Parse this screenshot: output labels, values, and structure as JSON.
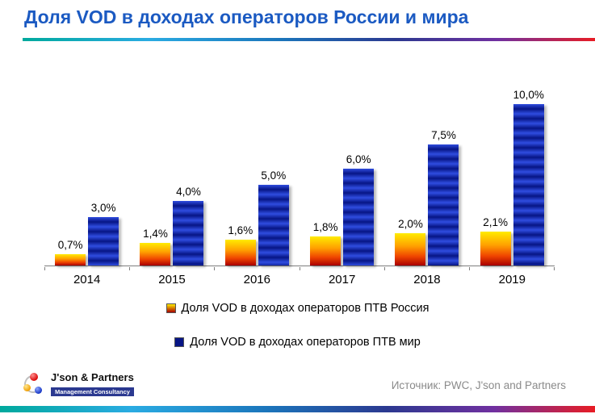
{
  "title": "Доля VOD в доходах операторов России и мира",
  "chart_data": {
    "type": "bar",
    "categories": [
      "2014",
      "2015",
      "2016",
      "2017",
      "2018",
      "2019"
    ],
    "series": [
      {
        "name": "Доля VOD в доходах операторов ПТВ Россия",
        "values": [
          0.7,
          1.4,
          1.6,
          1.8,
          2.0,
          2.1
        ],
        "labels": [
          "0,7%",
          "1,4%",
          "1,6%",
          "1,8%",
          "2,0%",
          "2,1%"
        ],
        "color": "#e04000"
      },
      {
        "name": "Доля VOD в доходах операторов ПТВ мир",
        "values": [
          3.0,
          4.0,
          5.0,
          6.0,
          7.5,
          10.0
        ],
        "labels": [
          "3,0%",
          "4,0%",
          "5,0%",
          "6,0%",
          "7,5%",
          "10,0%"
        ],
        "color": "#1226b0"
      }
    ],
    "title": "Доля VOD в доходах операторов России и мира",
    "xlabel": "",
    "ylabel": "",
    "ylim": [
      0,
      10.5
    ],
    "grid": false,
    "y_axis_visible": false,
    "legend_position": "bottom",
    "value_label_format": "decimal-comma-percent"
  },
  "footer": {
    "logo_title": "J'son & Partners",
    "logo_subtitle": "Management Consultancy",
    "source": "Источник: PWC, J'son and Partners"
  },
  "colors": {
    "title_color": "#1b5ac2",
    "russia_top": "#ffec00",
    "russia_mid": "#ffa000",
    "russia_bottom": "#a80000",
    "world_blue_light": "#2f4de0",
    "world_blue_dark": "#071585",
    "source_gray": "#8a8a8a"
  }
}
